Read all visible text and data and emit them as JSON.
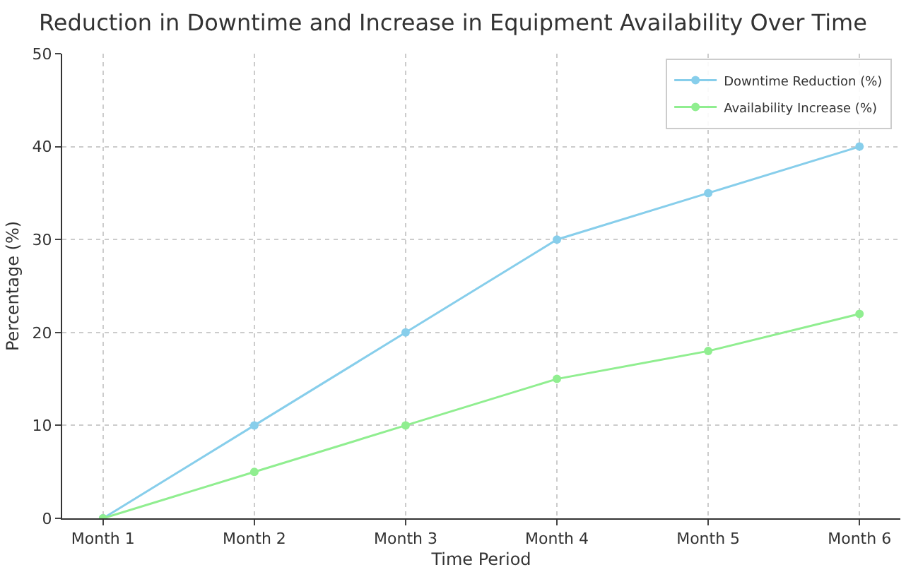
{
  "chart_data": {
    "type": "line",
    "title": "Reduction in Downtime and Increase in Equipment Availability Over Time",
    "xlabel": "Time Period",
    "ylabel": "Percentage (%)",
    "categories": [
      "Month 1",
      "Month 2",
      "Month 3",
      "Month 4",
      "Month 5",
      "Month 6"
    ],
    "series": [
      {
        "name": "Downtime Reduction (%)",
        "color": "#87ceeb",
        "values": [
          0,
          10,
          20,
          30,
          35,
          40
        ]
      },
      {
        "name": "Availability Increase (%)",
        "color": "#90ee90",
        "values": [
          0,
          5,
          10,
          15,
          18,
          22
        ]
      }
    ],
    "ylim": [
      0,
      50
    ],
    "yticks": [
      0,
      10,
      20,
      30,
      40,
      50
    ],
    "grid": true,
    "legend": "top right",
    "marker": "circle",
    "line_style": "solid"
  }
}
